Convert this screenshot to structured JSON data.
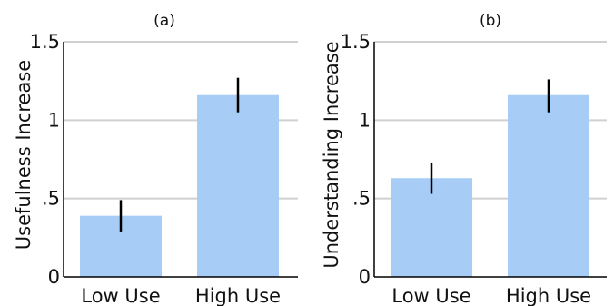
{
  "chart_data": [
    {
      "type": "bar",
      "title": "(a)",
      "xlabel": "",
      "ylabel": "Usefulness Increase",
      "categories": [
        "Low Use",
        "High Use"
      ],
      "values": [
        0.39,
        1.16
      ],
      "error_low": [
        0.29,
        1.05
      ],
      "error_high": [
        0.49,
        1.27
      ],
      "ylim": [
        0,
        1.5
      ],
      "yticks": [
        0,
        0.5,
        1,
        1.5
      ],
      "ytick_labels": [
        "0",
        ".5",
        "1",
        "1.5"
      ],
      "bar_color": "#a7cdf7",
      "grid": true
    },
    {
      "type": "bar",
      "title": "(b)",
      "xlabel": "",
      "ylabel": "Understanding Increase",
      "categories": [
        "Low Use",
        "High Use"
      ],
      "values": [
        0.63,
        1.16
      ],
      "error_low": [
        0.53,
        1.05
      ],
      "error_high": [
        0.73,
        1.26
      ],
      "ylim": [
        0,
        1.5
      ],
      "yticks": [
        0,
        0.5,
        1,
        1.5
      ],
      "ytick_labels": [
        "0",
        ".5",
        "1",
        "1.5"
      ],
      "bar_color": "#a7cdf7",
      "grid": true
    }
  ]
}
